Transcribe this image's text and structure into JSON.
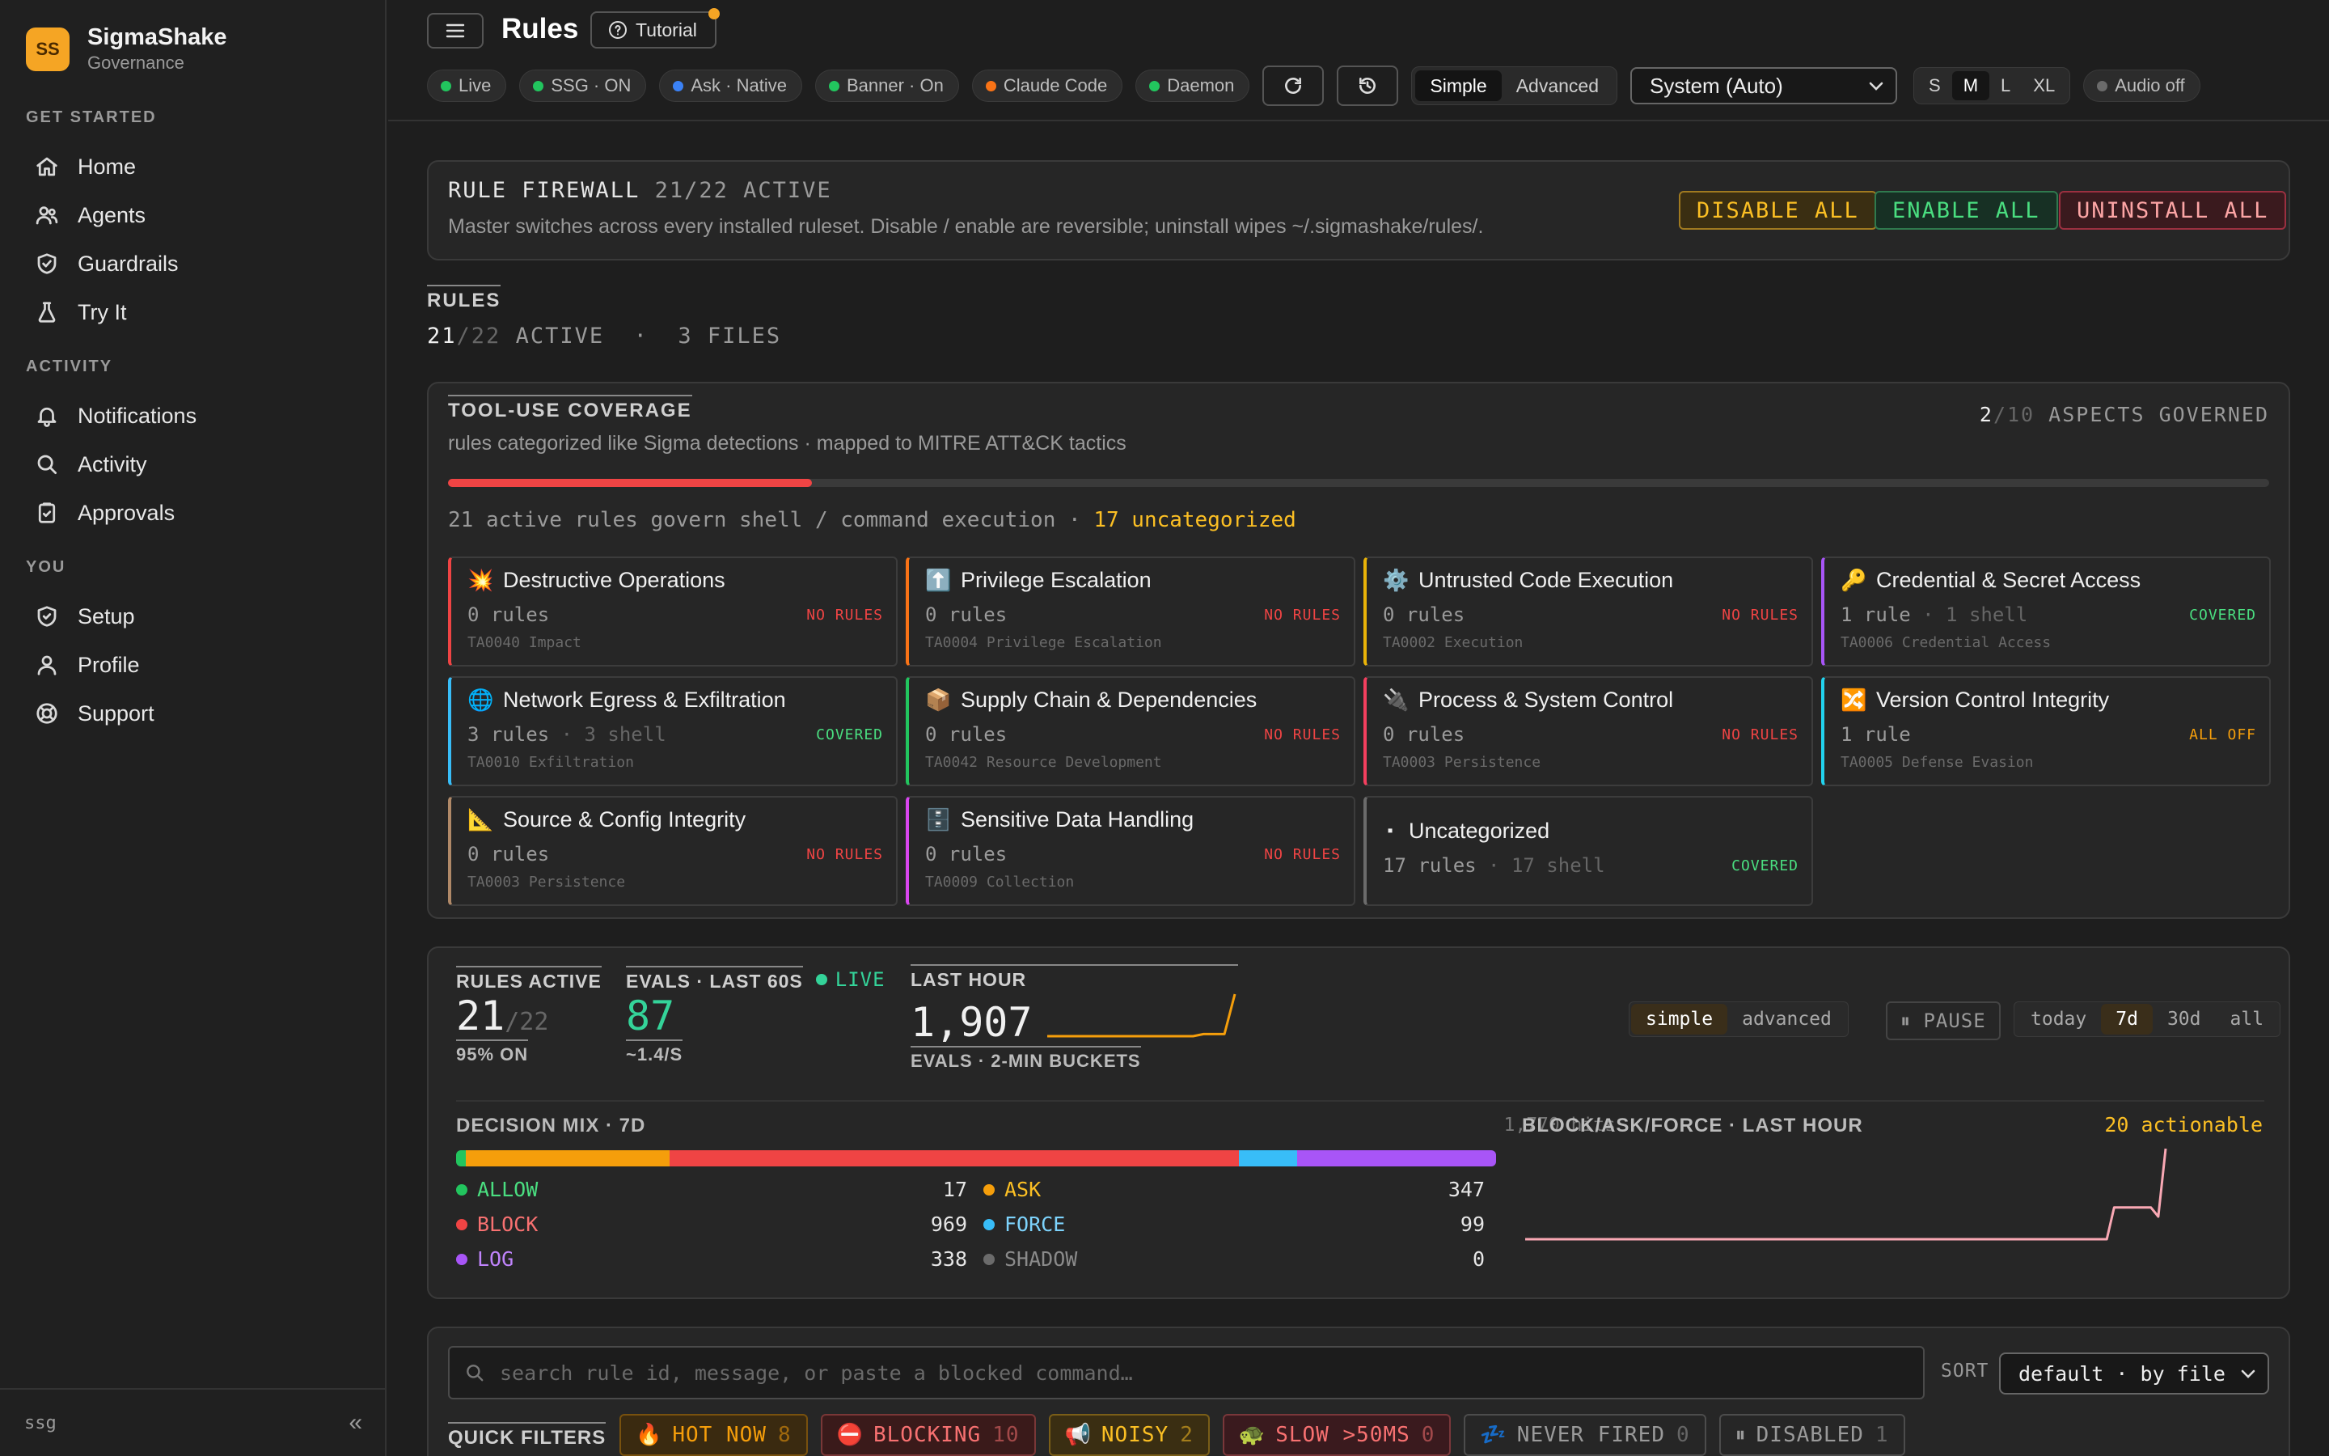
{
  "brand": {
    "initials": "SS",
    "name": "SigmaShake",
    "subtitle": "Governance"
  },
  "sidebar": {
    "sections": [
      {
        "label": "GET STARTED",
        "items": [
          {
            "label": "Home",
            "icon": "home-icon"
          },
          {
            "label": "Agents",
            "icon": "users-icon"
          },
          {
            "label": "Guardrails",
            "icon": "shield-check-icon"
          },
          {
            "label": "Try It",
            "icon": "flask-icon"
          }
        ]
      },
      {
        "label": "ACTIVITY",
        "items": [
          {
            "label": "Notifications",
            "icon": "bell-icon"
          },
          {
            "label": "Activity",
            "icon": "search-icon"
          },
          {
            "label": "Approvals",
            "icon": "clipboard-check-icon"
          }
        ]
      },
      {
        "label": "YOU",
        "items": [
          {
            "label": "Setup",
            "icon": "shield-icon"
          },
          {
            "label": "Profile",
            "icon": "user-icon"
          },
          {
            "label": "Support",
            "icon": "lifebuoy-icon"
          }
        ]
      }
    ],
    "footer": {
      "label": "ssg",
      "collapse": "«"
    }
  },
  "header": {
    "title": "Rules",
    "tutorial": "Tutorial",
    "chips": [
      {
        "label": "Live",
        "color": "#22c55e"
      },
      {
        "label": "SSG · ON",
        "color": "#22c55e"
      },
      {
        "label": "Ask · Native",
        "color": "#3b82f6"
      },
      {
        "label": "Banner · On",
        "color": "#22c55e"
      },
      {
        "label": "Claude Code",
        "color": "#f97316"
      },
      {
        "label": "Daemon",
        "color": "#22c55e"
      }
    ],
    "mode": {
      "simple": "Simple",
      "advanced": "Advanced",
      "selected": "Simple"
    },
    "theme_select": "System (Auto)",
    "sizes": [
      "S",
      "M",
      "L",
      "XL"
    ],
    "size_selected": "M",
    "audio": "Audio off"
  },
  "firewall": {
    "title": "RULE FIREWALL",
    "count": "21/22 ACTIVE",
    "desc": "Master switches across every installed ruleset. Disable / enable are reversible; uninstall wipes ~/.sigmashake/rules/.",
    "disable": "DISABLE ALL",
    "enable": "ENABLE ALL",
    "uninstall": "UNINSTALL ALL"
  },
  "rules_summary": {
    "title": "RULES",
    "active": "21",
    "total": "/22",
    "rest": "ACTIVE  ·  3 FILES"
  },
  "coverage": {
    "title": "TOOL-USE COVERAGE",
    "subtitle": "rules categorized like Sigma detections · mapped to MITRE ATT&CK tactics",
    "governed": "2",
    "governed_total": "/10",
    "governed_label": "ASPECTS GOVERNED",
    "progress": 0.2,
    "summary": "21 active rules govern shell / command execution ·",
    "uncat": "17 uncategorized",
    "cards": [
      {
        "emoji": "💥",
        "title": "Destructive Operations",
        "rules": "0 rules",
        "shell": "",
        "tactic": "TA0040 Impact",
        "status": "NO RULES",
        "border": "#ef4444"
      },
      {
        "emoji": "⬆️",
        "title": "Privilege Escalation",
        "rules": "0 rules",
        "shell": "",
        "tactic": "TA0004 Privilege Escalation",
        "status": "NO RULES",
        "border": "#f97316"
      },
      {
        "emoji": "⚙️",
        "title": "Untrusted Code Execution",
        "rules": "0 rules",
        "shell": "",
        "tactic": "TA0002 Execution",
        "status": "NO RULES",
        "border": "#eab308"
      },
      {
        "emoji": "🔑",
        "title": "Credential & Secret Access",
        "rules": "1 rule",
        "shell": " · 1 shell",
        "tactic": "TA0006 Credential Access",
        "status": "COVERED",
        "border": "#a855f7"
      },
      {
        "emoji": "🌐",
        "title": "Network Egress & Exfiltration",
        "rules": "3 rules",
        "shell": " · 3 shell",
        "tactic": "TA0010 Exfiltration",
        "status": "COVERED",
        "border": "#38bdf8"
      },
      {
        "emoji": "📦",
        "title": "Supply Chain & Dependencies",
        "rules": "0 rules",
        "shell": "",
        "tactic": "TA0042 Resource Development",
        "status": "NO RULES",
        "border": "#22c55e"
      },
      {
        "emoji": "🔌",
        "title": "Process & System Control",
        "rules": "0 rules",
        "shell": "",
        "tactic": "TA0003 Persistence",
        "status": "NO RULES",
        "border": "#f43f5e"
      },
      {
        "emoji": "🔀",
        "title": "Version Control Integrity",
        "rules": "1 rule",
        "shell": "",
        "tactic": "TA0005 Defense Evasion",
        "status": "ALL OFF",
        "border": "#22d3ee"
      },
      {
        "emoji": "📐",
        "title": "Source & Config Integrity",
        "rules": "0 rules",
        "shell": "",
        "tactic": "TA0003 Persistence",
        "status": "NO RULES",
        "border": "#b08968"
      },
      {
        "emoji": "🗄️",
        "title": "Sensitive Data Handling",
        "rules": "0 rules",
        "shell": "",
        "tactic": "TA0009 Collection",
        "status": "NO RULES",
        "border": "#d946ef"
      },
      {
        "emoji": "▪",
        "title": "Uncategorized",
        "rules": "17 rules",
        "shell": " · 17 shell",
        "tactic": "",
        "status": "COVERED",
        "border": "#6b6b6b"
      }
    ]
  },
  "stats": {
    "rules_active_label": "RULES ACTIVE",
    "rules_active": "21",
    "rules_total": "/22",
    "rules_pct": "95% ON",
    "evals_label": "EVALS · LAST 60S",
    "live": "LIVE",
    "evals": "87",
    "evals_rate": "~1.4/S",
    "last_hour_label": "LAST HOUR",
    "last_hour": "1,907",
    "last_hour_sub": "EVALS · 2-MIN BUCKETS",
    "view": [
      "simple",
      "advanced"
    ],
    "view_selected": "simple",
    "pause": "⏸ PAUSE",
    "ranges": [
      "today",
      "7d",
      "30d",
      "all"
    ],
    "range_selected": "7d"
  },
  "decision": {
    "title": "DECISION MIX · 7D",
    "hits": "1,770 hits",
    "items": [
      {
        "label": "ALLOW",
        "value": 17,
        "color": "#22c55e",
        "text": "#4ade80"
      },
      {
        "label": "ASK",
        "value": 347,
        "color": "#f59e0b",
        "text": "#fbbf24"
      },
      {
        "label": "BLOCK",
        "value": 969,
        "color": "#ef4444",
        "text": "#f87171"
      },
      {
        "label": "FORCE",
        "value": 99,
        "color": "#38bdf8",
        "text": "#7dd3fc"
      },
      {
        "label": "LOG",
        "value": 338,
        "color": "#a855f7",
        "text": "#c084fc"
      },
      {
        "label": "SHADOW",
        "value": 0,
        "color": "#6b6b6b",
        "text": "#8a8a8a"
      }
    ]
  },
  "block_chart": {
    "title": "BLOCK/ASK/FORCE · LAST HOUR",
    "actionable": "20 actionable"
  },
  "search": {
    "placeholder": "search rule id, message, or paste a blocked command…",
    "sort_label": "SORT",
    "sort_value": "default · by file"
  },
  "quick_filters": {
    "label": "QUICK FILTERS",
    "items": [
      {
        "emoji": "🔥",
        "label": "HOT NOW",
        "count": "8",
        "color": "#f59e0b",
        "bg": "#3a2a10"
      },
      {
        "emoji": "⛔",
        "label": "BLOCKING",
        "count": "10",
        "color": "#f87171",
        "bg": "#3a1a1a"
      },
      {
        "emoji": "📢",
        "label": "NOISY",
        "count": "2",
        "color": "#fbbf24",
        "bg": "#3a2e12"
      },
      {
        "emoji": "🐢",
        "label": "SLOW >50MS",
        "count": "0",
        "color": "#f87171",
        "bg": "#3a1a1e"
      },
      {
        "emoji": "💤",
        "label": "NEVER FIRED",
        "count": "0",
        "color": "#9a9a9a",
        "bg": "#262626"
      },
      {
        "emoji": "⏸",
        "label": "DISABLED",
        "count": "1",
        "color": "#9a9a9a",
        "bg": "#262626"
      }
    ]
  },
  "sparks": {
    "last_hour": [
      0,
      0,
      0,
      0,
      0,
      0,
      0,
      0,
      0,
      0,
      0,
      0,
      0,
      0,
      0,
      0.05,
      0.05,
      0.05,
      1
    ],
    "block": [
      0,
      0,
      0,
      0,
      0,
      0,
      0,
      0,
      0,
      0,
      0,
      0,
      0,
      0,
      0,
      0,
      0,
      0,
      0,
      0,
      0,
      0,
      0,
      0,
      0,
      0,
      0,
      0,
      0,
      0,
      0,
      0,
      0,
      0,
      0,
      0,
      0,
      0,
      0,
      0,
      0,
      0,
      0,
      0,
      0,
      0,
      0,
      0,
      0,
      0,
      0,
      0,
      0,
      0,
      0,
      0,
      0,
      0,
      0,
      0,
      0,
      0,
      0,
      0,
      0,
      0,
      0,
      0,
      0,
      0,
      0,
      0,
      0,
      0,
      0,
      0,
      0,
      0,
      0,
      0,
      0.35,
      0.35,
      0.35,
      0.35,
      0.35,
      0.35,
      0.25,
      1
    ]
  }
}
